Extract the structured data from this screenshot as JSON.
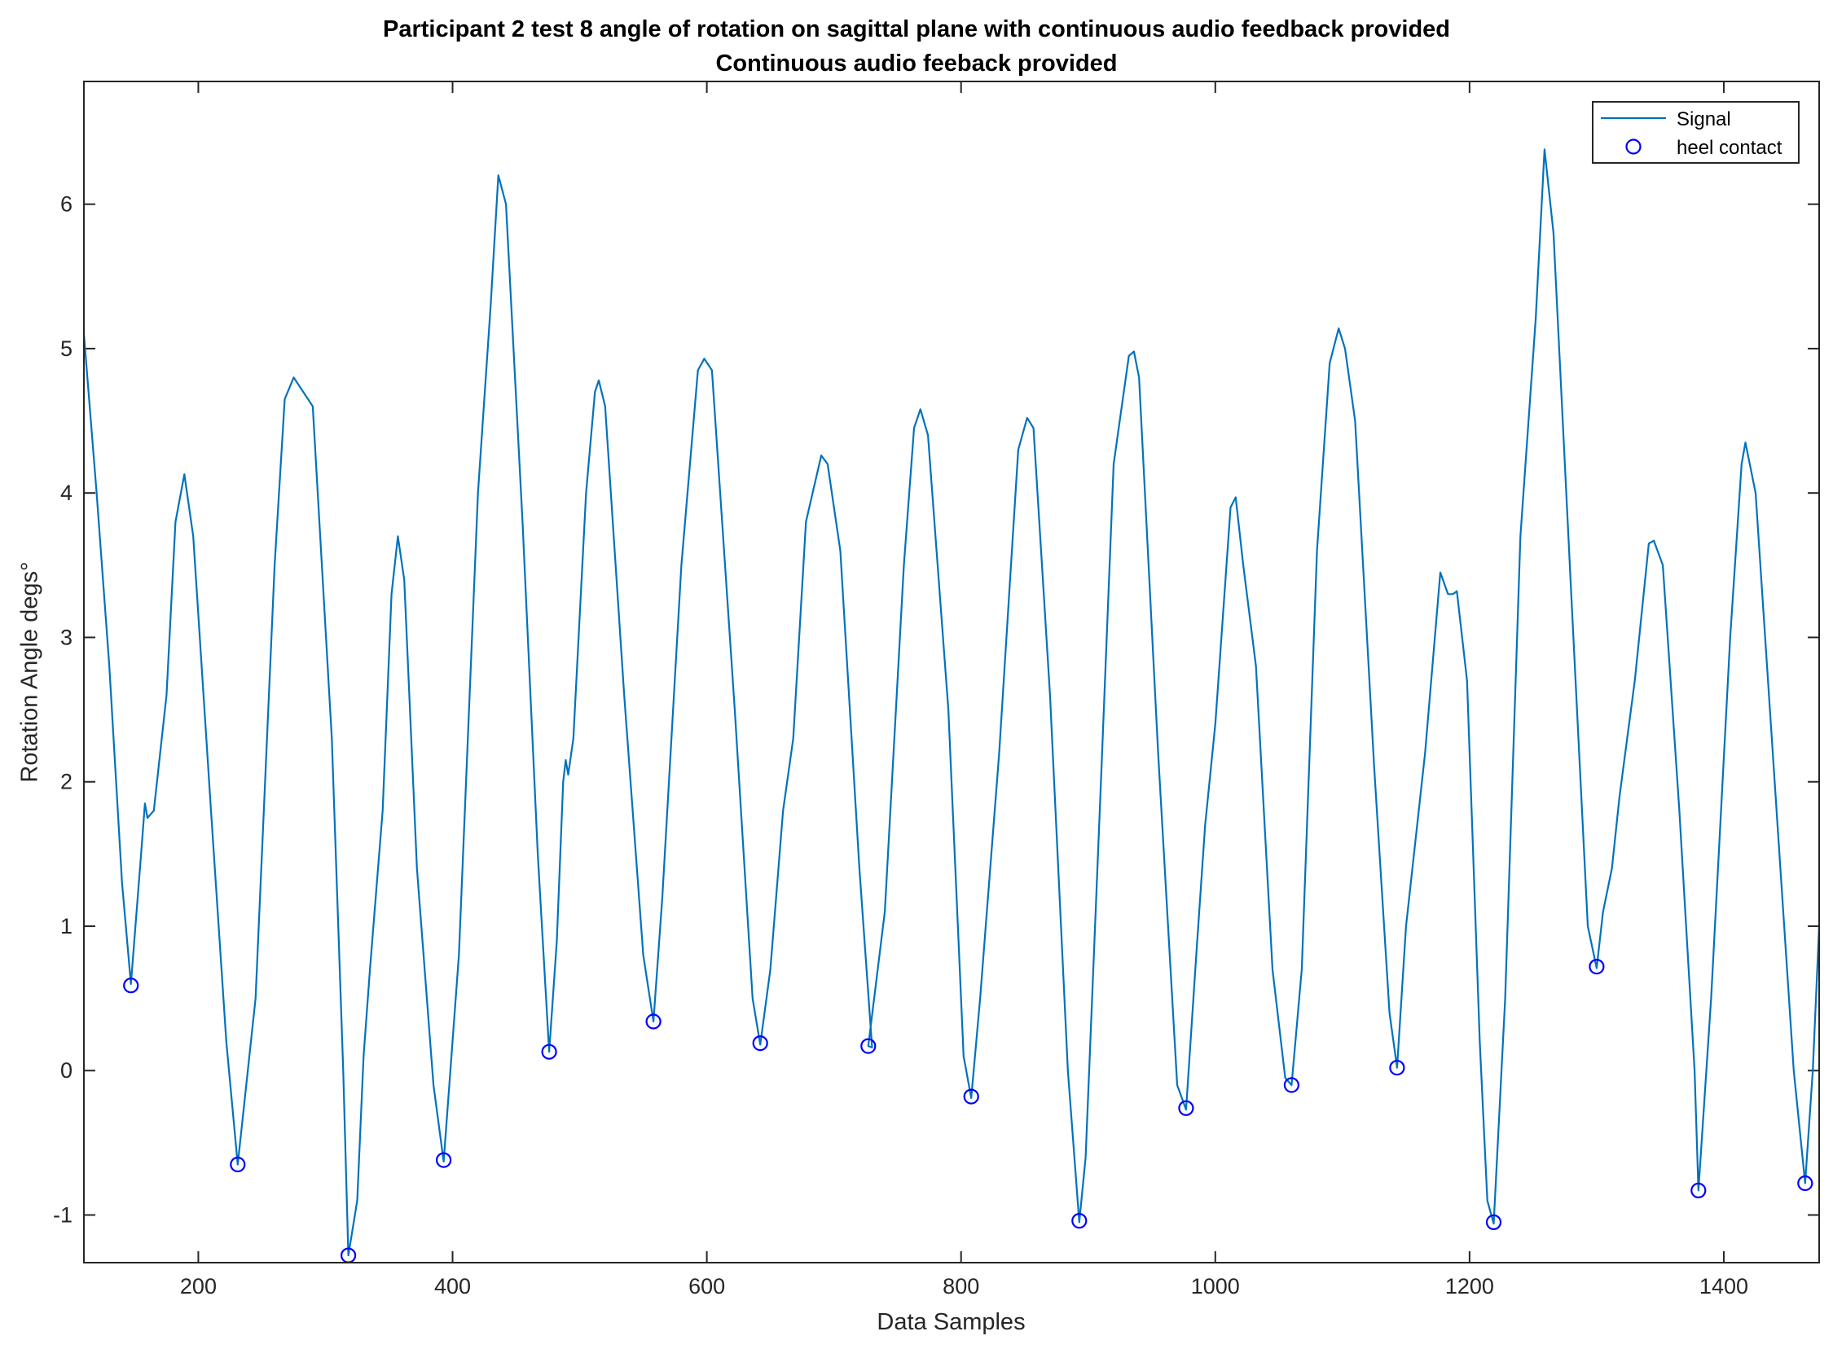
{
  "chart_data": {
    "type": "line",
    "title": "Participant 2 test 8 angle of rotation on sagittal plane with continuous audio feedback provided",
    "subtitle": "Continuous audio feeback  provided",
    "xlabel": "Data Samples",
    "ylabel": "Rotation Angle degs°",
    "xlim": [
      110,
      1475
    ],
    "ylim": [
      -1.33,
      6.85
    ],
    "xticks": [
      200,
      400,
      600,
      800,
      1000,
      1200,
      1400
    ],
    "yticks": [
      -1,
      0,
      1,
      2,
      3,
      4,
      5,
      6
    ],
    "xtick_labels": [
      "200",
      "400",
      "600",
      "800",
      "1000",
      "1200",
      "1400"
    ],
    "ytick_labels": [
      "-1",
      "0",
      "1",
      "2",
      "3",
      "4",
      "5",
      "6"
    ],
    "grid": false,
    "legend_position": "top-right",
    "colors": {
      "signal": "#0072BD",
      "heel_contact": "#0000FF",
      "axes": "#262626"
    },
    "series": [
      {
        "name": "Signal",
        "style": "line",
        "x": [
          110,
          120,
          130,
          140,
          147,
          155,
          158,
          160,
          165,
          175,
          182,
          189,
          196,
          210,
          222,
          231,
          245,
          260,
          268,
          275,
          290,
          305,
          314,
          318,
          325,
          330,
          335,
          345,
          352,
          357,
          362,
          372,
          385,
          393,
          405,
          420,
          430,
          436,
          442,
          455,
          467,
          476,
          482,
          487,
          489,
          491,
          495,
          505,
          512,
          515,
          520,
          535,
          550,
          558,
          565,
          580,
          593,
          598,
          604,
          622,
          636,
          642,
          650,
          660,
          668,
          678,
          690,
          695,
          705,
          720,
          730,
          727,
          740,
          755,
          763,
          768,
          774,
          790,
          802,
          808,
          815,
          830,
          845,
          852,
          857,
          870,
          884,
          893,
          898,
          910,
          920,
          932,
          936,
          940,
          955,
          970,
          977,
          985,
          992,
          1000,
          1012,
          1016,
          1022,
          1032,
          1045,
          1055,
          1060,
          1068,
          1080,
          1090,
          1097,
          1102,
          1110,
          1125,
          1137,
          1143,
          1150,
          1165,
          1177,
          1183,
          1187,
          1190,
          1198,
          1208,
          1214,
          1219,
          1228,
          1240,
          1252,
          1259,
          1266,
          1280,
          1293,
          1300,
          1305,
          1312,
          1318,
          1330,
          1341,
          1345,
          1352,
          1365,
          1377,
          1380,
          1390,
          1405,
          1414,
          1417,
          1425,
          1440,
          1455,
          1464,
          1470,
          1475
        ],
        "y": [
          5.1,
          4.0,
          2.8,
          1.3,
          0.6,
          1.5,
          1.85,
          1.75,
          1.8,
          2.6,
          3.8,
          4.13,
          3.7,
          1.8,
          0.2,
          -0.65,
          0.5,
          3.5,
          4.65,
          4.8,
          4.6,
          2.3,
          0.0,
          -1.28,
          -0.9,
          0.1,
          0.7,
          1.8,
          3.3,
          3.7,
          3.4,
          1.4,
          -0.1,
          -0.63,
          0.8,
          4.0,
          5.3,
          6.2,
          6.0,
          3.8,
          1.5,
          0.13,
          0.9,
          2.0,
          2.15,
          2.05,
          2.3,
          4.0,
          4.7,
          4.78,
          4.6,
          2.6,
          0.8,
          0.34,
          1.2,
          3.5,
          4.85,
          4.93,
          4.85,
          2.5,
          0.5,
          0.18,
          0.7,
          1.8,
          2.3,
          3.8,
          4.26,
          4.2,
          3.6,
          1.4,
          0.16,
          0.17,
          1.1,
          3.5,
          4.45,
          4.58,
          4.4,
          2.5,
          0.1,
          -0.19,
          0.5,
          2.2,
          4.3,
          4.52,
          4.45,
          2.6,
          0.0,
          -1.05,
          -0.6,
          2.0,
          4.2,
          4.95,
          4.98,
          4.8,
          2.2,
          -0.1,
          -0.27,
          0.8,
          1.7,
          2.4,
          3.9,
          3.97,
          3.5,
          2.8,
          0.7,
          -0.05,
          -0.1,
          0.7,
          3.6,
          4.9,
          5.14,
          5.0,
          4.5,
          2.1,
          0.4,
          0.02,
          1.0,
          2.2,
          3.45,
          3.3,
          3.3,
          3.32,
          2.7,
          0.2,
          -0.9,
          -1.06,
          0.5,
          3.7,
          5.2,
          6.38,
          5.8,
          3.3,
          1.0,
          0.71,
          1.1,
          1.4,
          1.9,
          2.7,
          3.65,
          3.67,
          3.5,
          1.8,
          0.0,
          -0.83,
          0.5,
          3.0,
          4.2,
          4.35,
          4.0,
          2.0,
          0.0,
          -0.78,
          0.0,
          1.0
        ]
      },
      {
        "name": "heel contact",
        "style": "markers",
        "x": [
          147,
          231,
          318,
          393,
          476,
          558,
          642,
          727,
          808,
          893,
          977,
          1060,
          1143,
          1219,
          1300,
          1380,
          1464
        ],
        "y": [
          0.59,
          -0.65,
          -1.28,
          -0.62,
          0.13,
          0.34,
          0.19,
          0.17,
          -0.18,
          -1.04,
          -0.26,
          -0.1,
          0.02,
          -1.05,
          0.72,
          -0.83,
          -0.78
        ]
      }
    ]
  }
}
